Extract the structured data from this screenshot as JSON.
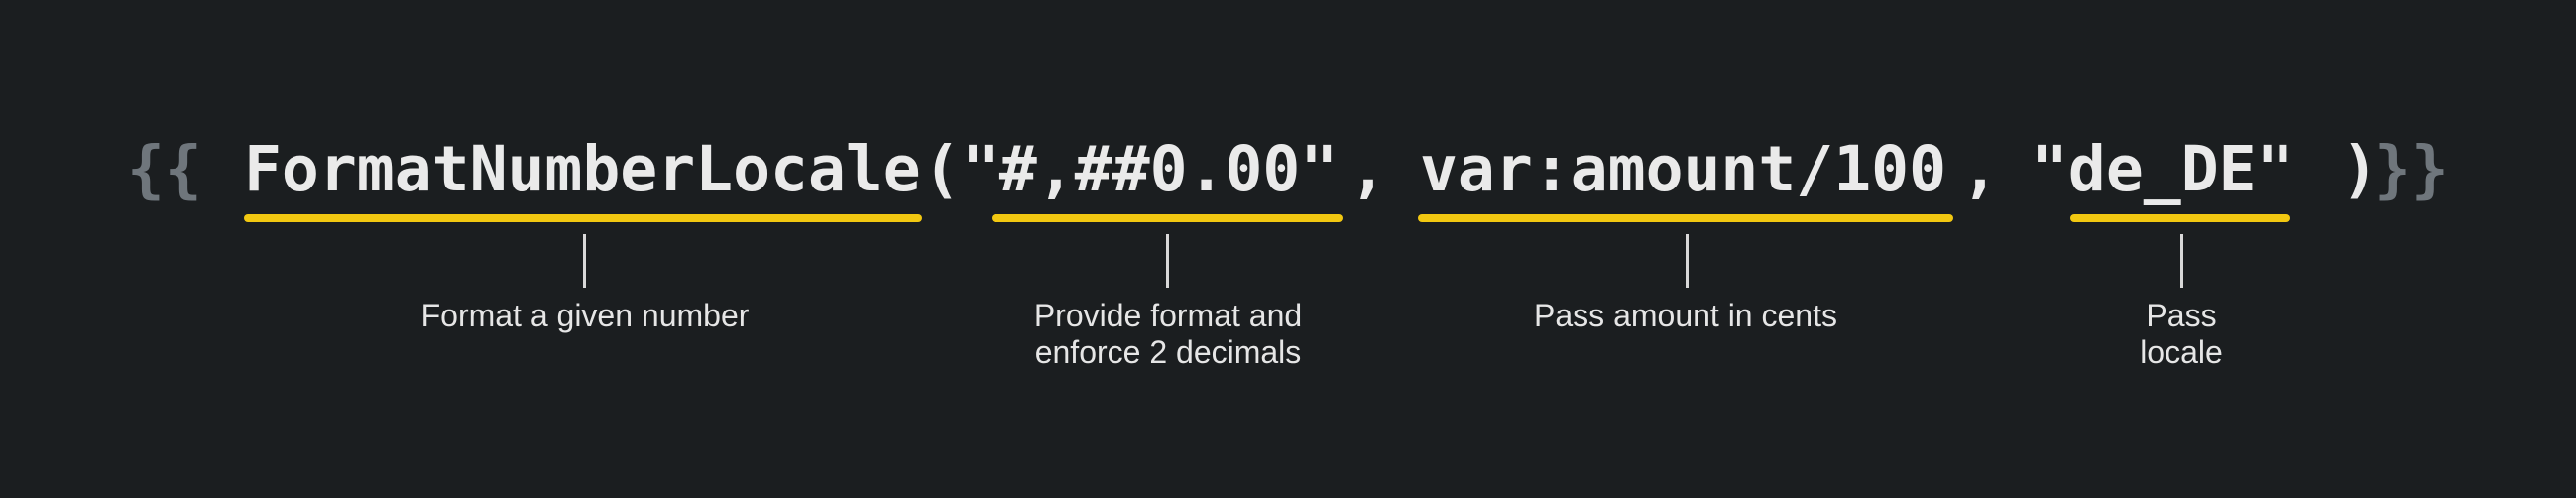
{
  "expression": {
    "open_braces": "{{",
    "close_braces": "}}",
    "function_name": "FormatNumberLocale",
    "open_paren": "(",
    "format_arg": "\"#,##0.00\"",
    "comma1": ",",
    "amount_arg": "var:amount/100",
    "comma2": ",",
    "locale_arg": "\"de_DE\"",
    "close_paren": ")"
  },
  "annotations": [
    {
      "text": "Format a given number"
    },
    {
      "text": "Provide format and\nenforce 2 decimals"
    },
    {
      "text": "Pass amount in cents"
    },
    {
      "text": "Pass\nlocale"
    }
  ],
  "colors": {
    "background": "#1b1e20",
    "code_text": "#eaeaea",
    "braces": "#6f767c",
    "underline": "#f2c811",
    "annotation_text": "#e6e6e6"
  }
}
